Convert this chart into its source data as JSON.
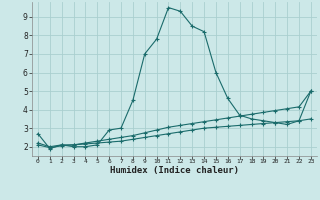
{
  "xlabel": "Humidex (Indice chaleur)",
  "bg_color": "#cce8e8",
  "grid_color": "#aacfcf",
  "line_color": "#1a6b6b",
  "xlim": [
    -0.5,
    23.5
  ],
  "ylim": [
    1.5,
    9.8
  ],
  "xticks": [
    0,
    1,
    2,
    3,
    4,
    5,
    6,
    7,
    8,
    9,
    10,
    11,
    12,
    13,
    14,
    15,
    16,
    17,
    18,
    19,
    20,
    21,
    22,
    23
  ],
  "yticks": [
    2,
    3,
    4,
    5,
    6,
    7,
    8,
    9
  ],
  "line1_x": [
    0,
    1,
    2,
    3,
    4,
    5,
    6,
    7,
    8,
    9,
    10,
    11,
    12,
    13,
    14,
    15,
    16,
    17,
    18,
    19,
    20,
    21,
    22,
    23
  ],
  "line1_y": [
    2.7,
    1.9,
    2.1,
    2.0,
    2.0,
    2.1,
    2.9,
    3.0,
    4.5,
    7.0,
    7.8,
    9.5,
    9.3,
    8.5,
    8.2,
    6.0,
    4.6,
    3.7,
    3.5,
    3.4,
    3.3,
    3.2,
    3.4,
    5.0
  ],
  "line2_x": [
    0,
    1,
    2,
    3,
    4,
    5,
    6,
    7,
    8,
    9,
    10,
    11,
    12,
    13,
    14,
    15,
    16,
    17,
    18,
    19,
    20,
    21,
    22,
    23
  ],
  "line2_y": [
    2.2,
    2.0,
    2.1,
    2.1,
    2.2,
    2.3,
    2.4,
    2.5,
    2.6,
    2.75,
    2.9,
    3.05,
    3.15,
    3.25,
    3.35,
    3.45,
    3.55,
    3.65,
    3.75,
    3.85,
    3.95,
    4.05,
    4.15,
    5.0
  ],
  "line3_x": [
    0,
    1,
    2,
    3,
    4,
    5,
    6,
    7,
    8,
    9,
    10,
    11,
    12,
    13,
    14,
    15,
    16,
    17,
    18,
    19,
    20,
    21,
    22,
    23
  ],
  "line3_y": [
    2.1,
    1.95,
    2.05,
    2.1,
    2.15,
    2.2,
    2.25,
    2.3,
    2.4,
    2.5,
    2.6,
    2.7,
    2.8,
    2.9,
    3.0,
    3.05,
    3.1,
    3.15,
    3.2,
    3.25,
    3.3,
    3.35,
    3.4,
    3.5
  ]
}
